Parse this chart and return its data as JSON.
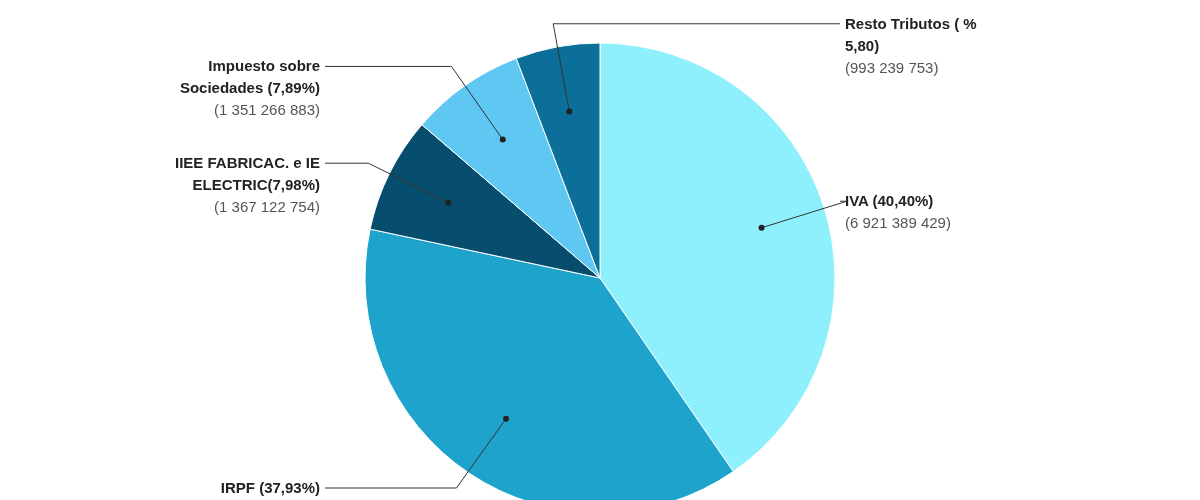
{
  "chart_data": {
    "type": "pie",
    "categories": [
      "IVA (40,40%)",
      "IRPF (37,93%)",
      "IIEE FABRICAC. e IE ELECTRIC(7,98%)",
      "Impuesto sobre Sociedades (7,89%)",
      "Resto Tributos ( % 5,80)"
    ],
    "values": [
      6921389429,
      6498000000,
      1367122754,
      1351266883,
      993239753
    ],
    "colors": [
      "#8ff0fd",
      "#1ea3cc",
      "#064d6e",
      "#5ec8f2",
      "#0b6f99"
    ],
    "value_labels": [
      "(6 921 389 429)",
      null,
      "(1 367 122 754)",
      "(1 351 266 883)",
      "(993 239 753)"
    ],
    "legend": false
  }
}
